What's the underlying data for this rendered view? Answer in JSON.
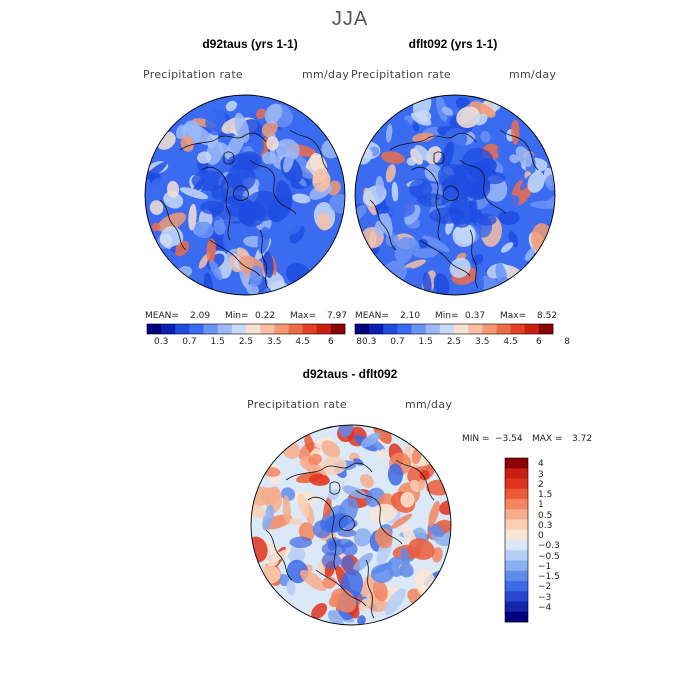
{
  "figure": {
    "season": "JJA"
  },
  "panels": [
    {
      "title": "d92taus (yrs 1-1)",
      "field": "Precipitation rate",
      "units": "mm/day",
      "stats": {
        "mean_label": "MEAN=",
        "mean": "2.09",
        "min_label": "Min=",
        "min": "0.22",
        "max_label": "Max=",
        "max": "7.97"
      }
    },
    {
      "title": "dflt092 (yrs 1-1)",
      "field": "Precipitation rate",
      "units": "mm/day",
      "stats": {
        "mean_label": "MEAN=",
        "mean": "2.10",
        "min_label": "Min=",
        "min": "0.37",
        "max_label": "Max=",
        "max": "8.52"
      }
    }
  ],
  "precip_colorbar": {
    "colors": [
      "#00007f",
      "#0a1eb4",
      "#1f4be0",
      "#3a6bf0",
      "#6b93f5",
      "#9cb8f7",
      "#c8dbf8",
      "#f7e3d3",
      "#f7c0a4",
      "#f29a76",
      "#ec6d4b",
      "#e04028",
      "#c81e10",
      "#8b0000"
    ],
    "ticks": [
      "0.3",
      "0.7",
      "1.5",
      "2.5",
      "3.5",
      "4.5",
      "6",
      "8"
    ]
  },
  "difference_panel": {
    "title": "d92taus - dflt092",
    "field": "Precipitation rate",
    "units": "mm/day",
    "stats": {
      "min_label": "MIN =",
      "min": "−3.54",
      "max_label": "MAX =",
      "max": "3.72"
    }
  },
  "diff_colorbar": {
    "colors": [
      "#8b0000",
      "#c81e10",
      "#e0321c",
      "#ec5a3a",
      "#f2865f",
      "#f6ad8c",
      "#f9cfb4",
      "#fbe6d6",
      "#dbe8f8",
      "#b6cdf5",
      "#8aaef0",
      "#5f8cec",
      "#3d6ae6",
      "#2747cf",
      "#1426a8",
      "#000080"
    ],
    "labels": [
      "4",
      "3",
      "2",
      "1.5",
      "1",
      "0.5",
      "0.3",
      "0",
      "−0.3",
      "−0.5",
      "−1",
      "−1.5",
      "−2",
      "−3",
      "−4"
    ]
  }
}
